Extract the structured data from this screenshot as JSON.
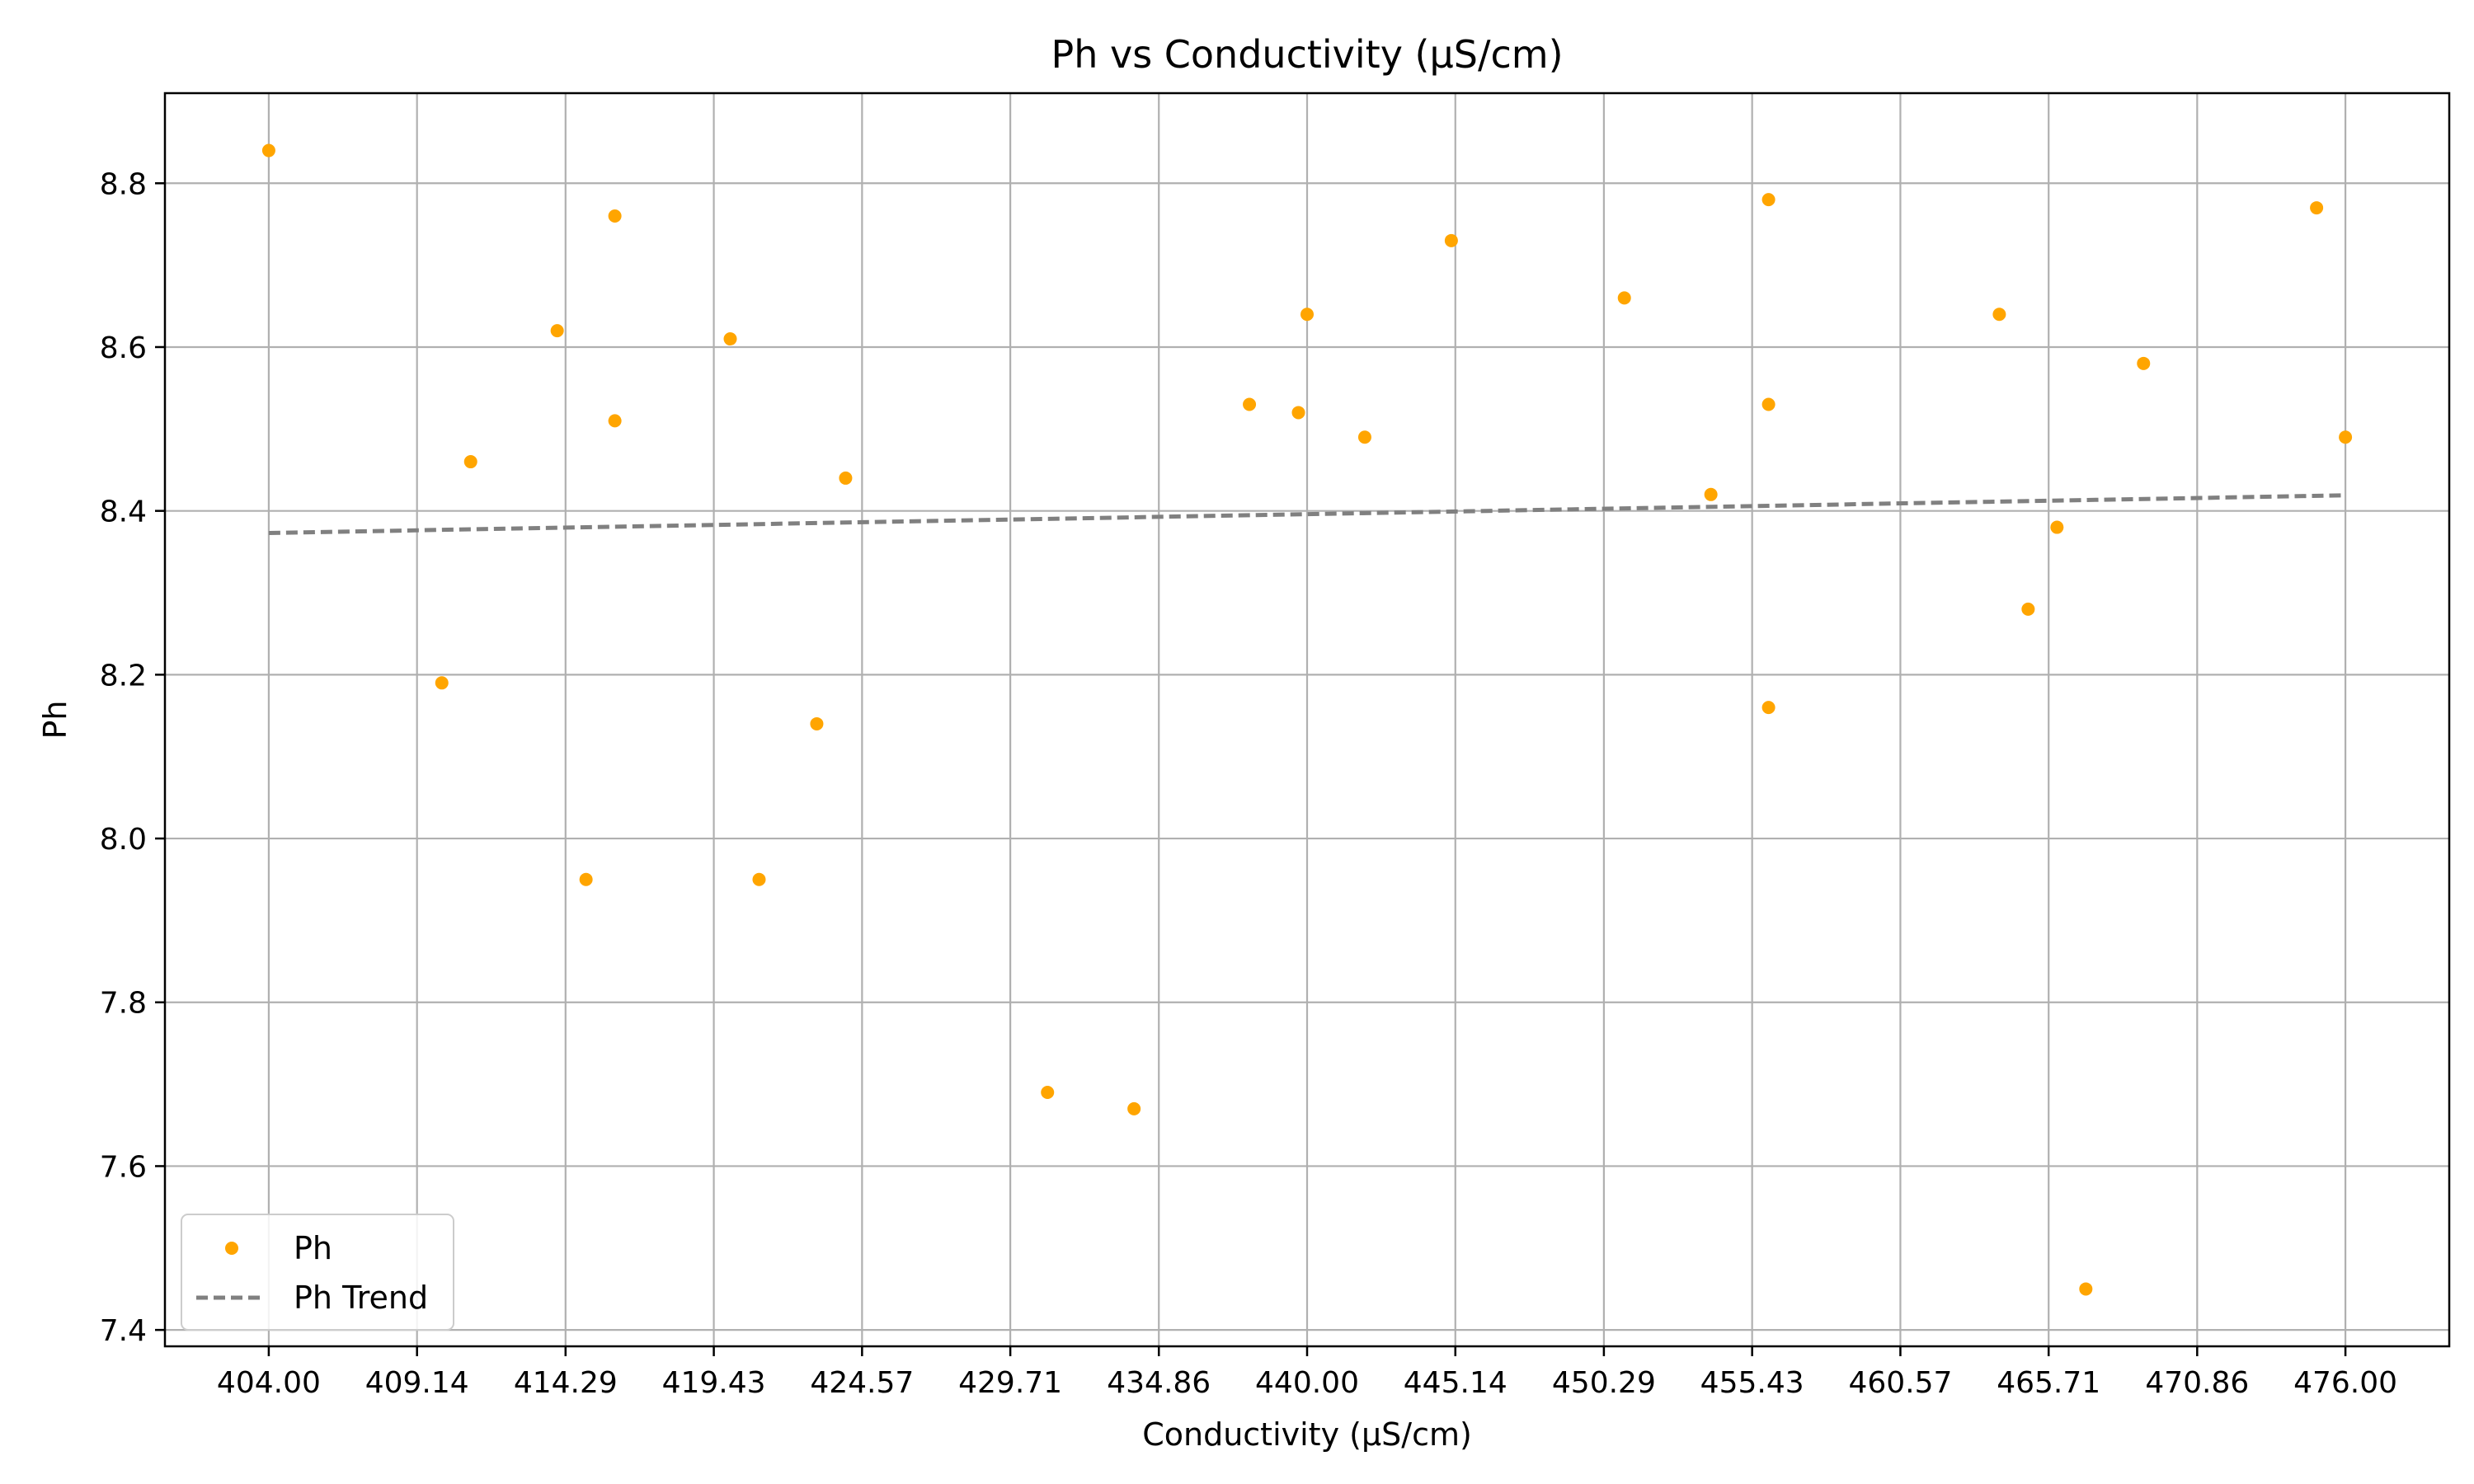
{
  "colors": {
    "points": "#FFA500",
    "trend": "#808080",
    "grid": "#b0b0b0",
    "axes": "#000000",
    "legend_border": "#cccccc"
  },
  "chart_data": {
    "type": "scatter",
    "title": "Ph vs Conductivity (µS/cm)",
    "xlabel": "Conductivity (µS/cm)",
    "ylabel": "Ph",
    "xlim": [
      400.4,
      479.6
    ],
    "ylim": [
      7.38,
      8.91
    ],
    "x_ticks": [
      "404.00",
      "409.14",
      "414.29",
      "419.43",
      "424.57",
      "429.71",
      "434.86",
      "440.00",
      "445.14",
      "450.29",
      "455.43",
      "460.57",
      "465.71",
      "470.86",
      "476.00"
    ],
    "y_ticks": [
      "7.4",
      "7.6",
      "7.8",
      "8.0",
      "8.2",
      "8.4",
      "8.6",
      "8.8"
    ],
    "grid": true,
    "legend_position": "lower-left",
    "series": [
      {
        "name": "Ph",
        "kind": "scatter",
        "points": [
          {
            "x": 404.0,
            "y": 8.84
          },
          {
            "x": 410.0,
            "y": 8.19
          },
          {
            "x": 411.0,
            "y": 8.46
          },
          {
            "x": 414.0,
            "y": 8.62
          },
          {
            "x": 415.0,
            "y": 7.95
          },
          {
            "x": 416.0,
            "y": 8.76
          },
          {
            "x": 416.0,
            "y": 8.51
          },
          {
            "x": 420.0,
            "y": 8.61
          },
          {
            "x": 421.0,
            "y": 7.95
          },
          {
            "x": 423.0,
            "y": 8.14
          },
          {
            "x": 424.0,
            "y": 8.44
          },
          {
            "x": 431.0,
            "y": 7.69
          },
          {
            "x": 434.0,
            "y": 7.67
          },
          {
            "x": 438.0,
            "y": 8.53
          },
          {
            "x": 439.7,
            "y": 8.52
          },
          {
            "x": 440.0,
            "y": 8.64
          },
          {
            "x": 442.0,
            "y": 8.49
          },
          {
            "x": 445.0,
            "y": 8.73
          },
          {
            "x": 451.0,
            "y": 8.66
          },
          {
            "x": 454.0,
            "y": 8.42
          },
          {
            "x": 456.0,
            "y": 8.78
          },
          {
            "x": 456.0,
            "y": 8.53
          },
          {
            "x": 456.0,
            "y": 8.16
          },
          {
            "x": 464.0,
            "y": 8.64
          },
          {
            "x": 465.0,
            "y": 8.28
          },
          {
            "x": 466.0,
            "y": 8.38
          },
          {
            "x": 467.0,
            "y": 7.45
          },
          {
            "x": 469.0,
            "y": 8.58
          },
          {
            "x": 475.0,
            "y": 8.77
          },
          {
            "x": 476.0,
            "y": 8.49
          }
        ]
      },
      {
        "name": "Ph Trend",
        "kind": "line",
        "style": "dashed",
        "points": [
          {
            "x": 404.0,
            "y": 8.373
          },
          {
            "x": 476.0,
            "y": 8.419
          }
        ]
      }
    ]
  }
}
